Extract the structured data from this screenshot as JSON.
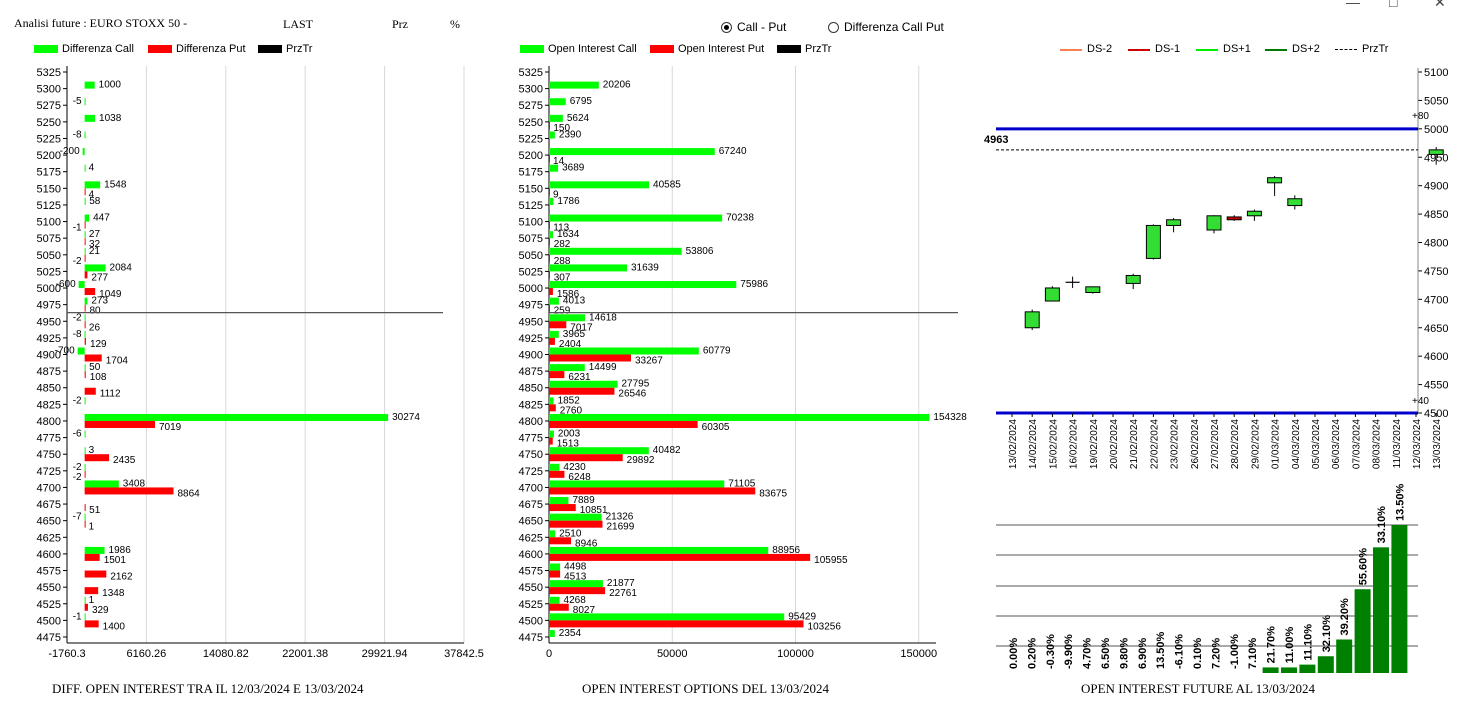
{
  "header": {
    "title": "Analisi future : EURO STOXX 50 -",
    "last_label": "LAST",
    "prz_label": "Prz",
    "pct_label": "%"
  },
  "mode_options": [
    {
      "label": "Call - Put",
      "selected": true
    },
    {
      "label": "Differenza Call Put",
      "selected": false
    }
  ],
  "colors": {
    "call": "#00ff00",
    "put": "#ff0000",
    "price_line": "#000000",
    "band": "#0000cc",
    "future_bar": "#008000"
  },
  "panel1": {
    "footer": "DIFF. OPEN INTEREST TRA IL 12/03/2024 E 13/03/2024",
    "legend": [
      "Differenza Call",
      "Differenza Put",
      "PrzTr"
    ]
  },
  "panel2": {
    "footer": "OPEN INTEREST OPTIONS DEL 13/03/2024",
    "legend": [
      "Open Interest Call",
      "Open Interest Put",
      "PrzTr"
    ]
  },
  "panel3": {
    "footer": "OPEN INTEREST FUTURE AL 13/03/2024",
    "legend": [
      "DS-2",
      "DS-1",
      "DS+1",
      "DS+2",
      "PrzTr"
    ],
    "price_label": "4963",
    "upper_band_label": "+80",
    "lower_band_label": "+40"
  },
  "chart_data": [
    {
      "type": "bar",
      "orientation": "horizontal",
      "categories": [
        "5325",
        "5300",
        "5275",
        "5250",
        "5225",
        "5200",
        "5175",
        "5150",
        "5125",
        "5100",
        "5075",
        "5050",
        "5025",
        "5000",
        "4975",
        "4950",
        "4925",
        "4900",
        "4875",
        "4850",
        "4825",
        "4800",
        "4775",
        "4750",
        "4725",
        "4700",
        "4675",
        "4650",
        "4625",
        "4600",
        "4575",
        "4550",
        "4525",
        "4500",
        "4475"
      ],
      "series": [
        {
          "name": "Differenza Call",
          "values": [
            null,
            1000,
            -5,
            1038,
            -8,
            -200,
            4,
            1548,
            58,
            447,
            27,
            21,
            2084,
            -600,
            273,
            -2,
            -8,
            -700,
            50,
            null,
            -2,
            30274,
            -6,
            3,
            -2,
            3408,
            null,
            -7,
            null,
            1986,
            null,
            null,
            1,
            -1,
            null
          ]
        },
        {
          "name": "Differenza Put",
          "values": [
            null,
            null,
            null,
            null,
            null,
            null,
            null,
            4,
            null,
            -1,
            32,
            -2,
            277,
            1049,
            80,
            26,
            129,
            1704,
            108,
            1112,
            null,
            7019,
            null,
            2435,
            -2,
            8864,
            51,
            1,
            null,
            1501,
            2162,
            1348,
            329,
            1400,
            null
          ]
        }
      ],
      "xticks": [
        "-1760.3",
        "6160.26",
        "14080.82",
        "22001.38",
        "29921.94",
        "37842.5"
      ],
      "xlim": [
        -1760.3,
        37842.5
      ],
      "price_level": 4963
    },
    {
      "type": "bar",
      "orientation": "horizontal",
      "categories": [
        "5325",
        "5300",
        "5275",
        "5250",
        "5225",
        "5200",
        "5175",
        "5150",
        "5125",
        "5100",
        "5075",
        "5050",
        "5025",
        "5000",
        "4975",
        "4950",
        "4925",
        "4900",
        "4875",
        "4850",
        "4825",
        "4800",
        "4775",
        "4750",
        "4725",
        "4700",
        "4675",
        "4650",
        "4625",
        "4600",
        "4575",
        "4550",
        "4525",
        "4500",
        "4475"
      ],
      "series": [
        {
          "name": "Open Interest Call",
          "values": [
            null,
            20206,
            6795,
            5624,
            2390,
            67240,
            3689,
            40585,
            1786,
            70238,
            1634,
            53806,
            31639,
            75986,
            4013,
            14618,
            3965,
            60779,
            14499,
            27795,
            1852,
            154328,
            2003,
            40482,
            4230,
            71105,
            7889,
            21326,
            2510,
            88956,
            4498,
            21877,
            4268,
            95429,
            2354
          ]
        },
        {
          "name": "Open Interest Put",
          "values": [
            null,
            null,
            null,
            150,
            null,
            14,
            null,
            9,
            null,
            113,
            282,
            288,
            307,
            1586,
            259,
            7017,
            2404,
            33267,
            6231,
            26546,
            2760,
            60305,
            1513,
            29892,
            6248,
            83675,
            10851,
            21699,
            8946,
            105955,
            4513,
            22761,
            8027,
            103256,
            null
          ]
        }
      ],
      "xticks": [
        "0",
        "50000",
        "100000",
        "150000"
      ],
      "xlim": [
        0,
        157000
      ],
      "price_level": 4963
    },
    {
      "type": "candlestick",
      "x": [
        "13/02/2024",
        "14/02/2024",
        "15/02/2024",
        "16/02/2024",
        "19/02/2024",
        "20/02/2024",
        "21/02/2024",
        "22/02/2024",
        "23/02/2024",
        "26/02/2024",
        "27/02/2024",
        "28/02/2024",
        "29/02/2024",
        "01/03/2024",
        "04/03/2024",
        "05/03/2024",
        "06/03/2024",
        "07/03/2024",
        "08/03/2024",
        "11/03/2024",
        "12/03/2024",
        "13/03/2024"
      ],
      "candles": [
        null,
        {
          "o": 4650,
          "h": 4682,
          "l": 4646,
          "c": 4678
        },
        {
          "o": 4697,
          "h": 4723,
          "l": 4697,
          "c": 4720
        },
        {
          "o": 4730,
          "h": 4740,
          "l": 4720,
          "c": 4730
        },
        {
          "o": 4712,
          "h": 4722,
          "l": 4710,
          "c": 4722
        },
        null,
        {
          "o": 4728,
          "h": 4745,
          "l": 4718,
          "c": 4742
        },
        {
          "o": 4772,
          "h": 4832,
          "l": 4770,
          "c": 4830
        },
        {
          "o": 4830,
          "h": 4843,
          "l": 4818,
          "c": 4840
        },
        null,
        {
          "o": 4822,
          "h": 4848,
          "l": 4816,
          "c": 4847
        },
        {
          "o": 4845,
          "h": 4848,
          "l": 4838,
          "c": 4840
        },
        {
          "o": 4847,
          "h": 4858,
          "l": 4838,
          "c": 4855
        },
        {
          "o": 4905,
          "h": 4917,
          "l": 4882,
          "c": 4914
        },
        {
          "o": 4865,
          "h": 4883,
          "l": 4858,
          "c": 4877
        },
        null,
        null,
        null,
        null,
        null,
        null,
        {
          "o": 4955,
          "h": 4968,
          "l": 4937,
          "c": 4963
        }
      ],
      "yticks": [
        4500,
        4550,
        4600,
        4650,
        4700,
        4750,
        4800,
        4850,
        4900,
        4950,
        5000,
        5050,
        5100
      ],
      "ylim": [
        4500,
        5110
      ],
      "bands": [
        5000,
        4500
      ],
      "price_level": 4963
    },
    {
      "type": "bar",
      "categories": [
        "13/02/2024",
        "14/02/2024",
        "15/02/2024",
        "16/02/2024",
        "19/02/2024",
        "20/02/2024",
        "21/02/2024",
        "22/02/2024",
        "23/02/2024",
        "26/02/2024",
        "27/02/2024",
        "28/02/2024",
        "29/02/2024",
        "01/03/2024",
        "04/03/2024",
        "05/03/2024",
        "06/03/2024",
        "07/03/2024",
        "08/03/2024",
        "11/03/2024",
        "12/03/2024",
        "13/03/2024"
      ],
      "labels": [
        "0.00%",
        "0.20%",
        "-0.30%",
        "-9.90%",
        "4.70%",
        "6.50%",
        "9.80%",
        "6.90%",
        "13.50%",
        "-6.10%",
        "0.10%",
        "7.20%",
        "-1.00%",
        "7.10%",
        "21.70%",
        "11.00%",
        "11.10%",
        "32.10%",
        "39.20%",
        "55.60%",
        "33.10%",
        "13.50%"
      ],
      "values": [
        0.0,
        0.2,
        -0.3,
        -9.9,
        4.7,
        6.5,
        9.8,
        6.9,
        13.5,
        -6.1,
        0.1,
        7.2,
        -1.0,
        7.1,
        21.7,
        11.0,
        11.1,
        32.1,
        39.2,
        55.6,
        33.1,
        13.5
      ],
      "relative_heights": [
        0,
        0,
        0,
        0,
        0,
        0,
        0,
        0,
        0,
        0,
        0,
        0,
        0,
        0,
        0.02,
        0.02,
        0.03,
        0.06,
        0.12,
        0.3,
        0.45,
        0.53
      ]
    }
  ]
}
